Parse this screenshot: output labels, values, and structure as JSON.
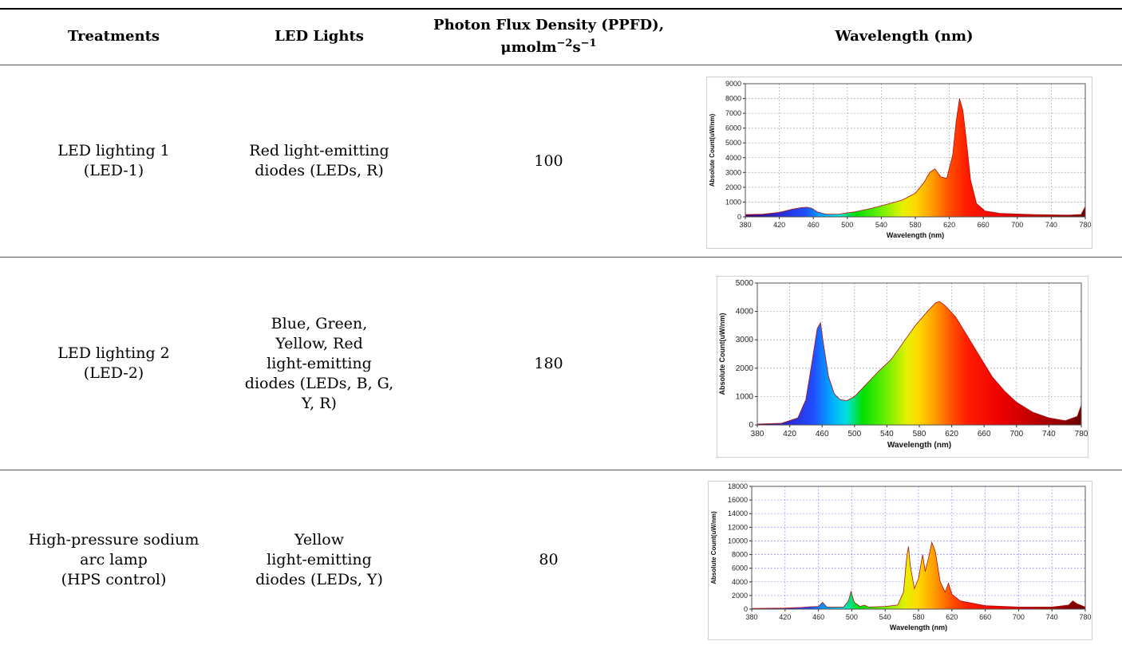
{
  "headers": {
    "treatments": "Treatments",
    "led_lights": "LED Lights",
    "ppfd_line1": "Photon Flux Density (PPFD),",
    "ppfd_unit_mu": "μmolm",
    "ppfd_unit_exp1": "−2",
    "ppfd_unit_s": "s",
    "ppfd_unit_exp2": "−1",
    "wavelength": "Wavelength (nm)"
  },
  "rows": [
    {
      "treatment_lines": [
        "LED lighting 1",
        "(LED-1)"
      ],
      "led_lines": [
        "Red light-emitting",
        "diodes (LEDs, R)"
      ],
      "ppfd": "100"
    },
    {
      "treatment_lines": [
        "LED lighting 2",
        "(LED-2)"
      ],
      "led_lines": [
        "Blue, Green,",
        "Yellow, Red",
        "light-emitting",
        "diodes (LEDs, B, G,",
        "Y, R)"
      ],
      "ppfd": "180"
    },
    {
      "treatment_lines": [
        "High-pressure sodium",
        "arc lamp",
        "(HPS control)"
      ],
      "led_lines": [
        "Yellow",
        "light-emitting",
        "diodes (LEDs, Y)"
      ],
      "ppfd": "80"
    }
  ],
  "chart_data": [
    {
      "type": "area",
      "title": "",
      "xlabel": "Wavelength (nm)",
      "ylabel": "Absolute Count(uW/nm)",
      "xlim": [
        380,
        780
      ],
      "ylim": [
        0,
        9000
      ],
      "xticks": [
        380,
        420,
        460,
        500,
        540,
        580,
        620,
        660,
        700,
        740,
        780
      ],
      "yticks": [
        0,
        1000,
        2000,
        3000,
        4000,
        5000,
        6000,
        7000,
        8000,
        9000
      ],
      "grid": true,
      "x": [
        380,
        400,
        420,
        435,
        445,
        452,
        458,
        465,
        475,
        490,
        510,
        530,
        550,
        565,
        580,
        590,
        597,
        603,
        610,
        617,
        624,
        628,
        632,
        636,
        640,
        645,
        652,
        662,
        680,
        720,
        760,
        775,
        780
      ],
      "y": [
        150,
        180,
        300,
        520,
        620,
        650,
        580,
        330,
        180,
        190,
        350,
        600,
        900,
        1150,
        1600,
        2300,
        3000,
        3250,
        2700,
        2600,
        4200,
        6400,
        8000,
        7200,
        5200,
        2500,
        900,
        400,
        230,
        150,
        120,
        160,
        700
      ]
    },
    {
      "type": "area",
      "title": "",
      "xlabel": "Wavelength (nm)",
      "ylabel": "Absolute Count(uW/nm)",
      "xlim": [
        380,
        780
      ],
      "ylim": [
        0,
        5000
      ],
      "xticks": [
        380,
        420,
        460,
        500,
        540,
        580,
        620,
        660,
        700,
        740,
        780
      ],
      "yticks": [
        0,
        1000,
        2000,
        3000,
        4000,
        5000
      ],
      "grid": true,
      "x": [
        380,
        410,
        430,
        440,
        448,
        454,
        458,
        462,
        468,
        475,
        482,
        490,
        500,
        510,
        520,
        530,
        545,
        560,
        575,
        590,
        600,
        605,
        612,
        625,
        640,
        655,
        670,
        685,
        700,
        720,
        740,
        760,
        775,
        780
      ],
      "y": [
        30,
        60,
        250,
        900,
        2300,
        3400,
        3600,
        2800,
        1700,
        1100,
        900,
        850,
        1000,
        1300,
        1600,
        1900,
        2300,
        2900,
        3500,
        4000,
        4300,
        4350,
        4200,
        3800,
        3100,
        2400,
        1700,
        1200,
        800,
        450,
        250,
        150,
        300,
        700
      ]
    },
    {
      "type": "area",
      "title": "",
      "xlabel": "Wavelength (nm)",
      "ylabel": "Absolute Count(uW/nm)",
      "xlim": [
        380,
        780
      ],
      "ylim": [
        0,
        18000
      ],
      "xticks": [
        380,
        420,
        460,
        500,
        540,
        580,
        620,
        660,
        700,
        740,
        780
      ],
      "yticks": [
        0,
        2000,
        4000,
        6000,
        8000,
        10000,
        12000,
        14000,
        16000,
        18000
      ],
      "grid": true,
      "x": [
        380,
        420,
        440,
        450,
        460,
        465,
        470,
        490,
        496,
        499,
        503,
        510,
        515,
        520,
        540,
        555,
        562,
        566,
        568,
        570,
        575,
        580,
        585,
        588,
        592,
        596,
        600,
        606,
        612,
        616,
        620,
        630,
        660,
        700,
        740,
        760,
        765,
        770,
        780
      ],
      "y": [
        100,
        150,
        250,
        350,
        400,
        1000,
        300,
        300,
        1200,
        2600,
        1000,
        400,
        600,
        300,
        400,
        600,
        2500,
        7800,
        9200,
        6500,
        3000,
        4500,
        8000,
        5500,
        7500,
        9800,
        8500,
        4000,
        2500,
        3800,
        2200,
        1200,
        500,
        300,
        300,
        600,
        1200,
        800,
        300
      ]
    }
  ]
}
